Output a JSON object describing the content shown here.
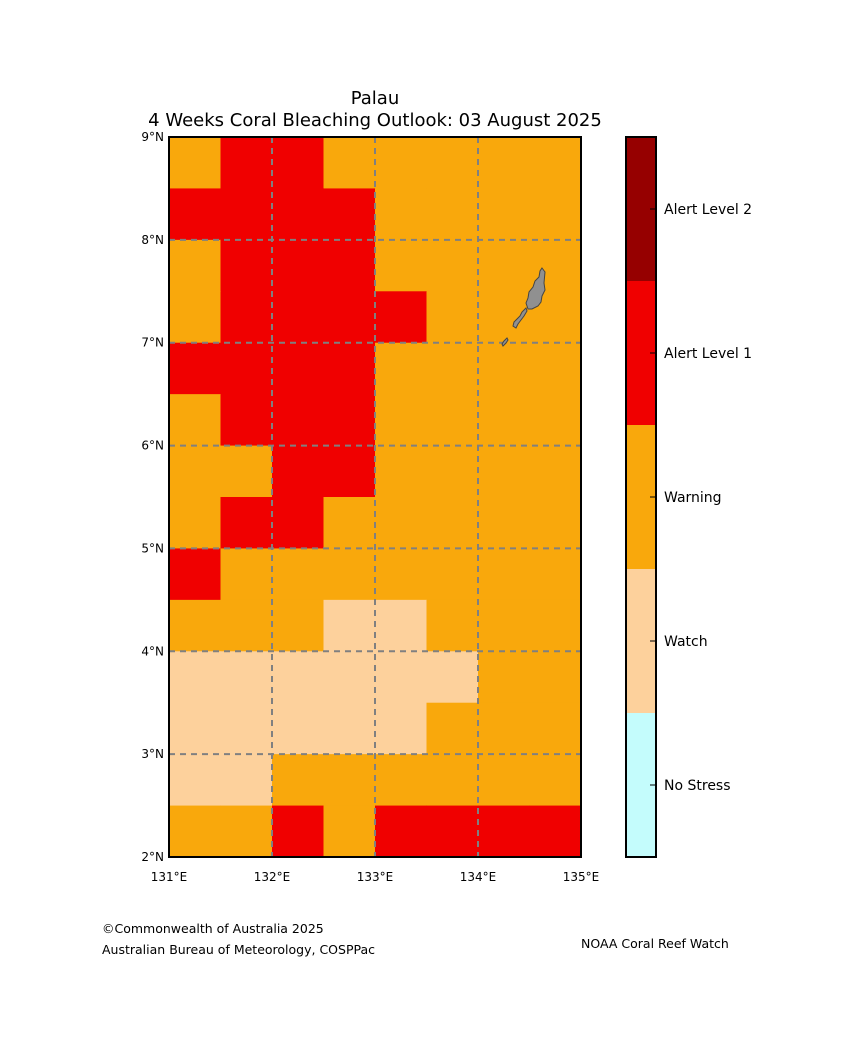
{
  "title": "Palau",
  "subtitle": "4 Weeks Coral Bleaching Outlook: 03 August 2025",
  "map": {
    "lon_range": [
      131,
      135
    ],
    "lat_range": [
      2,
      9
    ],
    "lon_ticks": [
      {
        "value": 131,
        "label": "131°E"
      },
      {
        "value": 132,
        "label": "132°E"
      },
      {
        "value": 133,
        "label": "133°E"
      },
      {
        "value": 134,
        "label": "134°E"
      },
      {
        "value": 135,
        "label": "135°E"
      }
    ],
    "lat_ticks": [
      {
        "value": 2,
        "label": "2°N"
      },
      {
        "value": 3,
        "label": "3°N"
      },
      {
        "value": 4,
        "label": "4°N"
      },
      {
        "value": 5,
        "label": "5°N"
      },
      {
        "value": 6,
        "label": "6°N"
      },
      {
        "value": 7,
        "label": "7°N"
      },
      {
        "value": 8,
        "label": "8°N"
      },
      {
        "value": 9,
        "label": "9°N"
      }
    ],
    "grid": true,
    "cell_size_deg": 0.5,
    "land_color": "#909090",
    "land_outline_color": "#444444",
    "grid_color": "#808080",
    "cells_north_to_south": [
      "WAAWWWWW",
      "AAAAWWWW",
      "WAAAWWWW",
      "WAAAAWWW",
      "AAAAWWWW",
      "WAAAWWWW",
      "WWAAWWWW",
      "WAAWWWWW",
      "AWWWWWWW",
      "WWWHHWWW",
      "HHHHHHWW",
      "HHHHHWWW",
      "HHWWWWWW",
      "WWAWAAAA"
    ]
  },
  "legend": {
    "levels": [
      {
        "code": "N",
        "label": "No Stress",
        "color": "#c4fcfc"
      },
      {
        "code": "H",
        "label": "Watch",
        "color": "#fdd19c"
      },
      {
        "code": "W",
        "label": "Warning",
        "color": "#f9a80c"
      },
      {
        "code": "A",
        "label": "Alert Level 1",
        "color": "#f00000"
      },
      {
        "code": "B",
        "label": "Alert Level 2",
        "color": "#960000"
      }
    ]
  },
  "footer": {
    "copyright": "©Commonwealth of Australia 2025",
    "agency": "Australian Bureau of Meteorology, COSPPac",
    "partner": "NOAA Coral Reef Watch"
  }
}
